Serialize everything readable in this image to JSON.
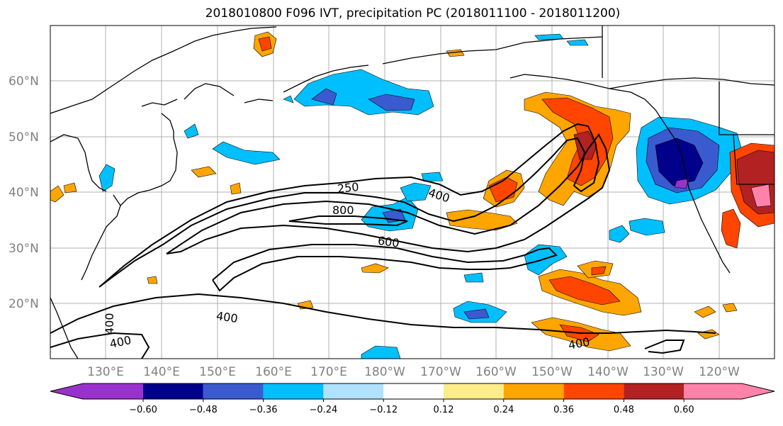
{
  "title": "2018010800 F096 IVT, precipitation PC (2018011100 - 2018011200)",
  "latitude_labels": [
    "60°N",
    "50°N",
    "40°N",
    "30°N",
    "20°N"
  ],
  "longitude_labels": [
    "130°E",
    "140°E",
    "150°E",
    "160°E",
    "170°E",
    "180°W",
    "170°W",
    "160°W",
    "150°W",
    "140°W",
    "130°W",
    "120°W"
  ],
  "ivt_contour_labels": [
    "250",
    "400",
    "800",
    "600",
    "400",
    "400",
    "400"
  ],
  "colorbar": {
    "ticks": [
      "−0.60",
      "−0.48",
      "−0.36",
      "−0.24",
      "−0.12",
      "0.12",
      "0.24",
      "0.36",
      "0.48",
      "0.60"
    ],
    "colors": [
      "#9932cc",
      "#00008b",
      "#3a5bcf",
      "#00bfff",
      "#b0e2ff",
      "#ffffff",
      "#ffec8b",
      "#ffa500",
      "#ff4500",
      "#b22222",
      "#ff82ab"
    ]
  },
  "colors": {
    "coastline": "#000000",
    "grid": "#b0b0b0",
    "ivt_contour": "#000000",
    "axis_label": "#808080"
  }
}
